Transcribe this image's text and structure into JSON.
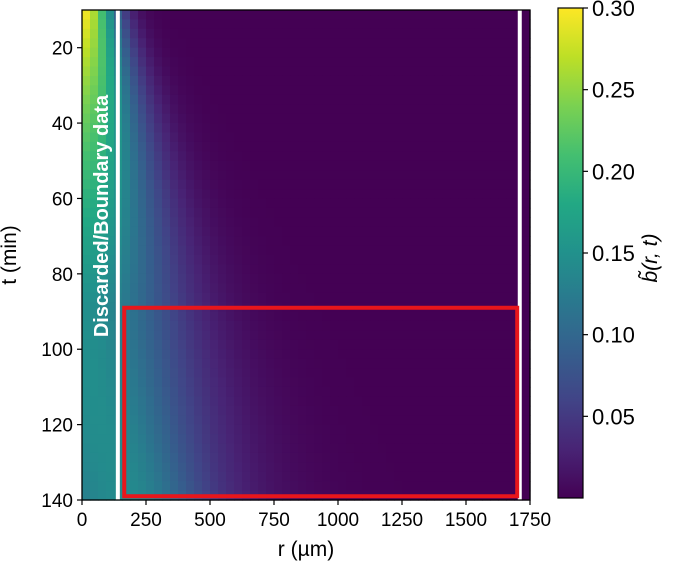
{
  "chart_data": {
    "type": "heatmap",
    "xlabel": "r (µm)",
    "ylabel": "t (min)",
    "xlim": [
      0,
      1750
    ],
    "ylim": [
      140,
      10
    ],
    "x_ticks": [
      "0",
      "250",
      "500",
      "750",
      "1000",
      "1250",
      "1500",
      "1750"
    ],
    "x_tick_values": [
      0,
      250,
      500,
      750,
      1000,
      1250,
      1500,
      1750
    ],
    "y_ticks": [
      "20",
      "40",
      "60",
      "80",
      "100",
      "120",
      "140"
    ],
    "y_tick_values": [
      20,
      40,
      60,
      80,
      100,
      120,
      140
    ],
    "colorbar": {
      "label": "b̃(r, t)",
      "min": 0.0,
      "max": 0.3,
      "ticks": [
        "0.05",
        "0.10",
        "0.15",
        "0.20",
        "0.25",
        "0.30"
      ],
      "tick_values": [
        0.05,
        0.1,
        0.15,
        0.2,
        0.25,
        0.3
      ],
      "colormap": "viridis"
    },
    "boundary_lines_r": [
      140,
      1710
    ],
    "boundary_color": "#ffffff",
    "annotation": "Discarded/Boundary data",
    "highlight_region": {
      "r_range": [
        165,
        1700
      ],
      "t_range": [
        89,
        139
      ],
      "color": "#e8161b"
    },
    "field_description_values": {
      "peak_value": 0.3,
      "peak_at": {
        "r": 0,
        "t": 10
      }
    }
  }
}
